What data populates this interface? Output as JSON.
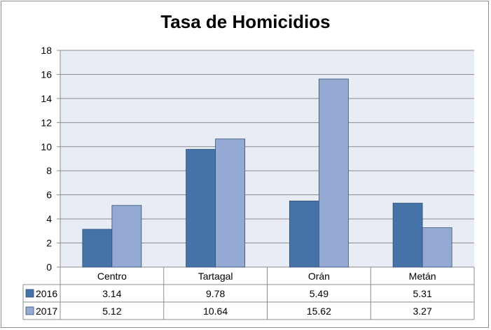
{
  "chart_data": {
    "type": "bar",
    "title": "Tasa de Homicidios",
    "categories": [
      "Centro",
      "Tartagal",
      "Orán",
      "Metán"
    ],
    "series": [
      {
        "name": "2016",
        "values": [
          3.14,
          9.78,
          5.49,
          5.31
        ],
        "color": "#4573a8"
      },
      {
        "name": "2017",
        "values": [
          5.12,
          10.64,
          15.62,
          3.27
        ],
        "color": "#95aad3"
      }
    ],
    "ylim": [
      0,
      18
    ],
    "yticks": [
      0,
      2,
      4,
      6,
      8,
      10,
      12,
      14,
      16,
      18
    ],
    "grid": true,
    "legend": "data-table",
    "plot_background": "#e8ecf4"
  }
}
